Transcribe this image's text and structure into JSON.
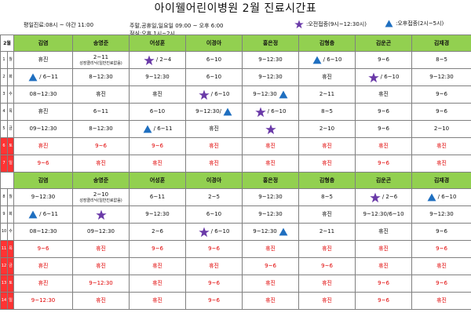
{
  "title": "아이웰어린이병원 2월 진료시간표",
  "info": {
    "line1": "평일진료:08시 ~ 야간 11:00",
    "line2": "주말,공휴일,일요일 09:00 ~ 오후 6:00",
    "line3": "점심:오후 1시~2시"
  },
  "legend": {
    "star": ":오전접종(9시~12:30시)",
    "triangle": ":오후접종(2시~5시)"
  },
  "colors": {
    "header": "#92d050",
    "holiday": "#ff3333",
    "red_text": "#e00000",
    "star": "#6a3aa8",
    "triangle": "#1f6fc0"
  },
  "month_label": "2월",
  "doctors": [
    "김염",
    "송영준",
    "어성훈",
    "이경아",
    "홍은정",
    "김형충",
    "김운곤",
    "김재경"
  ],
  "blocks": [
    {
      "rows": [
        {
          "day": "1",
          "dow": "월",
          "holiday": false,
          "cells": [
            {
              "t": "휴진"
            },
            {
              "t": "2~11",
              "sub": "성장클리닉(일반진료없음)"
            },
            {
              "sym": "star",
              "t": "/ 2~4"
            },
            {
              "t": "6~10"
            },
            {
              "t": "9~12:30"
            },
            {
              "sym": "tri",
              "t": "/ 6~10"
            },
            {
              "t": "9~6"
            },
            {
              "t": "8~5"
            }
          ]
        },
        {
          "day": "2",
          "dow": "화",
          "holiday": false,
          "cells": [
            {
              "sym": "tri",
              "t": "/ 6~11"
            },
            {
              "t": "8~12:30"
            },
            {
              "t": "9~12:30"
            },
            {
              "t": "6~10"
            },
            {
              "t": "9~12:30"
            },
            {
              "t": "휴진"
            },
            {
              "sym": "star",
              "t": "/ 6~10"
            },
            {
              "t": "9~12:30"
            }
          ]
        },
        {
          "day": "3",
          "dow": "수",
          "holiday": false,
          "cells": [
            {
              "t": "08~12:30"
            },
            {
              "t": "휴진"
            },
            {
              "t": "휴진"
            },
            {
              "sym": "star",
              "t": "/ 6~10"
            },
            {
              "t": "9~12:30",
              "symAfter": "tri"
            },
            {
              "t": "2~11"
            },
            {
              "t": "휴진"
            },
            {
              "t": "9~6"
            }
          ]
        },
        {
          "day": "4",
          "dow": "목",
          "holiday": false,
          "cells": [
            {
              "t": "휴진"
            },
            {
              "t": "6~11"
            },
            {
              "t": "6~10"
            },
            {
              "t": "9~12:30/",
              "symAfter": "tri"
            },
            {
              "sym": "star",
              "t": "/ 6~10"
            },
            {
              "t": "8~5"
            },
            {
              "t": "9~6"
            },
            {
              "t": "9~6"
            }
          ]
        },
        {
          "day": "5",
          "dow": "금",
          "holiday": false,
          "cells": [
            {
              "t": "09~12:30"
            },
            {
              "t": "8~12:30"
            },
            {
              "sym": "tri",
              "t": "/ 6~11"
            },
            {
              "t": "휴진"
            },
            {
              "sym": "star",
              "t": ""
            },
            {
              "t": "2~10"
            },
            {
              "t": "9~6"
            },
            {
              "t": "2~10"
            }
          ]
        },
        {
          "day": "6",
          "dow": "토",
          "holiday": true,
          "cells": [
            {
              "t": "휴진",
              "red": true
            },
            {
              "t": "9~6",
              "red": true
            },
            {
              "t": "9~6",
              "red": true
            },
            {
              "t": "휴진",
              "red": true
            },
            {
              "t": "휴진",
              "red": true
            },
            {
              "t": "휴진",
              "red": true
            },
            {
              "t": "휴진",
              "red": true
            },
            {
              "t": "휴진",
              "red": true
            }
          ]
        },
        {
          "day": "7",
          "dow": "일",
          "holiday": true,
          "cells": [
            {
              "t": "9~6",
              "red": true
            },
            {
              "t": "휴진",
              "red": true
            },
            {
              "t": "휴진",
              "red": true
            },
            {
              "t": "휴진",
              "red": true
            },
            {
              "t": "휴진",
              "red": true
            },
            {
              "t": "휴진",
              "red": true
            },
            {
              "t": "9~6",
              "red": true
            },
            {
              "t": "휴진",
              "red": true
            }
          ]
        }
      ]
    },
    {
      "rows": [
        {
          "day": "8",
          "dow": "월",
          "holiday": false,
          "cells": [
            {
              "t": "9~12:30"
            },
            {
              "t": "2~10",
              "sub": "성장클리닉(일반진료없음)"
            },
            {
              "t": "6~11"
            },
            {
              "t": "2~5"
            },
            {
              "t": "9~12:30"
            },
            {
              "t": "8~5"
            },
            {
              "sym": "star",
              "t": "/ 2~6"
            },
            {
              "sym": "tri",
              "t": "/ 6~10"
            }
          ]
        },
        {
          "day": "9",
          "dow": "화",
          "holiday": false,
          "cells": [
            {
              "sym": "tri",
              "t": "/ 6~11"
            },
            {
              "sym": "star",
              "t": ""
            },
            {
              "t": "9~12:30"
            },
            {
              "t": "6~10"
            },
            {
              "t": "9~12:30"
            },
            {
              "t": "휴진"
            },
            {
              "t": "9~12:30/6~10"
            },
            {
              "t": "9~12:30"
            }
          ]
        },
        {
          "day": "10",
          "dow": "수",
          "holiday": false,
          "cells": [
            {
              "t": "08~12:30"
            },
            {
              "t": "09~12:30"
            },
            {
              "t": "2~6"
            },
            {
              "sym": "star",
              "t": "/ 6~10"
            },
            {
              "t": "9~12:30",
              "symAfter": "tri"
            },
            {
              "t": "2~11"
            },
            {
              "t": "휴진"
            },
            {
              "t": "9~6"
            }
          ]
        },
        {
          "day": "11",
          "dow": "목",
          "holiday": true,
          "cells": [
            {
              "t": "9~6",
              "red": true
            },
            {
              "t": "휴진",
              "red": true
            },
            {
              "t": "9~6",
              "red": true
            },
            {
              "t": "9~6",
              "red": true
            },
            {
              "t": "휴진",
              "red": true
            },
            {
              "t": "휴진",
              "red": true
            },
            {
              "t": "휴진",
              "red": true
            },
            {
              "t": "9~6",
              "red": true
            }
          ]
        },
        {
          "day": "12",
          "dow": "금",
          "holiday": true,
          "cells": [
            {
              "t": "휴진",
              "red": true
            },
            {
              "t": "휴진",
              "red": true
            },
            {
              "t": "휴진",
              "red": true
            },
            {
              "t": "휴진",
              "red": true
            },
            {
              "t": "9~6",
              "red": true
            },
            {
              "t": "9~6",
              "red": true
            },
            {
              "t": "휴진",
              "red": true
            },
            {
              "t": "휴진",
              "red": true
            }
          ]
        },
        {
          "day": "13",
          "dow": "토",
          "holiday": true,
          "cells": [
            {
              "t": "휴진",
              "red": true
            },
            {
              "t": "9~12:30",
              "red": true
            },
            {
              "t": "휴진",
              "red": true
            },
            {
              "t": "9~6",
              "red": true
            },
            {
              "t": "휴진",
              "red": true
            },
            {
              "t": "휴진",
              "red": true
            },
            {
              "t": "9~6",
              "red": true
            },
            {
              "t": "9~6",
              "red": true
            }
          ]
        },
        {
          "day": "14",
          "dow": "일",
          "holiday": true,
          "cells": [
            {
              "t": "9~12:30",
              "red": true
            },
            {
              "t": "휴진",
              "red": true
            },
            {
              "t": "휴진",
              "red": true
            },
            {
              "t": "9~6",
              "red": true
            },
            {
              "t": "휴진",
              "red": true
            },
            {
              "t": "휴진",
              "red": true
            },
            {
              "t": "9~6",
              "red": true
            },
            {
              "t": "휴진",
              "red": true
            }
          ]
        }
      ]
    }
  ]
}
